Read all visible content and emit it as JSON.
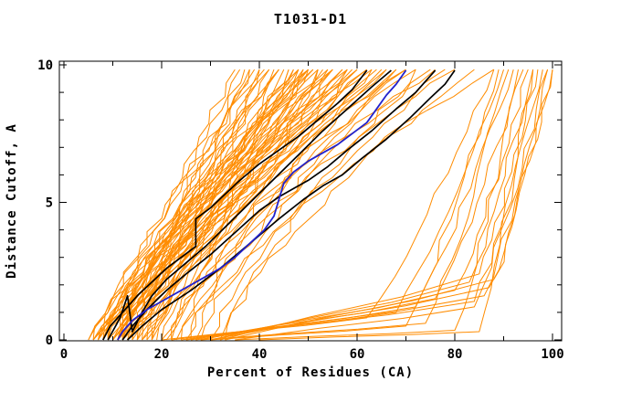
{
  "page": {
    "background": "#FFFFFF"
  },
  "chart_data": {
    "type": "line",
    "title": "T1031-D1",
    "xlabel": "Percent of Residues (CA)",
    "ylabel": "Distance Cutoff, A",
    "xlim": [
      0,
      100
    ],
    "ylim": [
      0,
      10
    ],
    "x_major_ticks": [
      0,
      20,
      40,
      60,
      80,
      100
    ],
    "x_tick_labels": [
      "0",
      "20",
      "40",
      "60",
      "80",
      "100"
    ],
    "x_minor_step": 10,
    "y_major_ticks": [
      0,
      5,
      10
    ],
    "y_tick_labels": [
      "0",
      "5",
      "10"
    ],
    "y_minor_step": 1,
    "grid": false,
    "legend": "none",
    "curve_top_y": 9.83,
    "colors": {
      "orange": "#FF8C00",
      "black": "#000000",
      "blue": "#2222CC",
      "axis": "#000000",
      "background": "#FFFFFF"
    },
    "series": {
      "orange_models_fan": [
        [
          5,
          36,
          1.0
        ],
        [
          5,
          40,
          1.1
        ],
        [
          6,
          38,
          0.9
        ],
        [
          6,
          44,
          1.15
        ],
        [
          6,
          50,
          1.2
        ],
        [
          7,
          37,
          0.85
        ],
        [
          7,
          42,
          1.0
        ],
        [
          7,
          47,
          1.1
        ],
        [
          7,
          55,
          1.25
        ],
        [
          8,
          39,
          0.9
        ],
        [
          8,
          44,
          1.05
        ],
        [
          8,
          50,
          1.15
        ],
        [
          8,
          58,
          1.3
        ],
        [
          9,
          41,
          0.95
        ],
        [
          9,
          46,
          1.05
        ],
        [
          9,
          52,
          1.2
        ],
        [
          9,
          60,
          1.3
        ],
        [
          10,
          38,
          0.85
        ],
        [
          10,
          43,
          1.0
        ],
        [
          10,
          48,
          1.1
        ],
        [
          10,
          54,
          1.2
        ],
        [
          10,
          63,
          1.35
        ],
        [
          11,
          40,
          0.9
        ],
        [
          11,
          45,
          1.0
        ],
        [
          11,
          51,
          1.15
        ],
        [
          11,
          57,
          1.25
        ],
        [
          11,
          66,
          1.35
        ],
        [
          12,
          42,
          0.95
        ],
        [
          12,
          47,
          1.05
        ],
        [
          12,
          53,
          1.15
        ],
        [
          12,
          60,
          1.3
        ],
        [
          12,
          70,
          1.4
        ],
        [
          13,
          44,
          0.95
        ],
        [
          13,
          49,
          1.1
        ],
        [
          13,
          55,
          1.2
        ],
        [
          13,
          64,
          1.3
        ],
        [
          14,
          46,
          1.0
        ],
        [
          14,
          52,
          1.1
        ],
        [
          14,
          58,
          1.25
        ],
        [
          14,
          68,
          1.35
        ],
        [
          15,
          48,
          1.0
        ],
        [
          15,
          54,
          1.15
        ],
        [
          15,
          62,
          1.3
        ],
        [
          16,
          50,
          1.05
        ],
        [
          16,
          57,
          1.2
        ],
        [
          16,
          72,
          1.4
        ],
        [
          17,
          52,
          1.1
        ],
        [
          17,
          60,
          1.25
        ],
        [
          18,
          55,
          1.15
        ],
        [
          18,
          65,
          1.3
        ],
        [
          19,
          58,
          1.2
        ],
        [
          20,
          50,
          1.0
        ],
        [
          20,
          62,
          1.25
        ],
        [
          21,
          55,
          1.1
        ],
        [
          22,
          66,
          1.3
        ],
        [
          23,
          59,
          1.15
        ],
        [
          24,
          70,
          1.35
        ],
        [
          25,
          63,
          1.2
        ],
        [
          26,
          75,
          1.4
        ],
        [
          28,
          68,
          1.25
        ],
        [
          30,
          78,
          1.35
        ],
        [
          32,
          72,
          1.2
        ],
        [
          33,
          84,
          1.4
        ],
        [
          27,
          88,
          1.5
        ],
        [
          22,
          80,
          1.45
        ],
        [
          18,
          76,
          1.4
        ],
        [
          6,
          35,
          0.9
        ],
        [
          9,
          49,
          1.1
        ],
        [
          7,
          51,
          1.2
        ],
        [
          11,
          48,
          1.05
        ]
      ],
      "orange_models_late": [
        [
          20,
          62,
          0.8,
          88
        ],
        [
          22,
          68,
          1.0,
          90
        ],
        [
          24,
          72,
          1.2,
          92
        ],
        [
          26,
          76,
          1.5,
          94
        ],
        [
          28,
          80,
          1.8,
          95
        ],
        [
          30,
          83,
          2.1,
          96
        ],
        [
          32,
          85,
          2.4,
          97
        ],
        [
          25,
          84,
          1.4,
          98
        ],
        [
          27,
          86,
          1.6,
          99
        ],
        [
          30,
          87,
          1.9,
          100
        ],
        [
          33,
          88,
          2.2,
          100
        ],
        [
          35,
          84,
          1.2,
          99
        ],
        [
          30,
          70,
          0.5,
          89
        ],
        [
          35,
          80,
          0.35,
          93
        ],
        [
          40,
          85,
          0.3,
          96
        ],
        [
          28,
          74,
          0.6,
          91
        ]
      ],
      "black_models": [
        [
          [
            8,
            0
          ],
          [
            9.5,
            0.5
          ],
          [
            12,
            1.0
          ],
          [
            15,
            1.6
          ],
          [
            18,
            2.1
          ],
          [
            21,
            2.6
          ],
          [
            24,
            3.0
          ],
          [
            27,
            3.4
          ],
          [
            27,
            4.4
          ],
          [
            30,
            4.8
          ],
          [
            33,
            5.3
          ],
          [
            36,
            5.8
          ],
          [
            40,
            6.4
          ],
          [
            44,
            6.9
          ],
          [
            48,
            7.4
          ],
          [
            52,
            8.0
          ],
          [
            56,
            8.6
          ],
          [
            59,
            9.1
          ],
          [
            62,
            9.8
          ]
        ],
        [
          [
            9,
            0
          ],
          [
            11.5,
            0.8
          ],
          [
            13,
            1.6
          ],
          [
            14,
            0.3
          ],
          [
            16,
            1.0
          ],
          [
            18,
            1.6
          ],
          [
            21,
            2.2
          ],
          [
            25,
            2.8
          ],
          [
            29,
            3.4
          ],
          [
            33,
            4.1
          ],
          [
            37,
            4.8
          ],
          [
            41,
            5.5
          ],
          [
            45,
            6.2
          ],
          [
            49,
            6.9
          ],
          [
            53,
            7.6
          ],
          [
            58,
            8.4
          ],
          [
            63,
            9.2
          ],
          [
            67,
            9.8
          ]
        ],
        [
          [
            12,
            0
          ],
          [
            14,
            0.5
          ],
          [
            17,
            1.1
          ],
          [
            21,
            1.8
          ],
          [
            25,
            2.4
          ],
          [
            30,
            3.1
          ],
          [
            35,
            3.9
          ],
          [
            40,
            4.7
          ],
          [
            44,
            5.2
          ],
          [
            47,
            5.5
          ],
          [
            50,
            5.8
          ],
          [
            54,
            6.3
          ],
          [
            58,
            6.9
          ],
          [
            63,
            7.6
          ],
          [
            68,
            8.4
          ],
          [
            72,
            9.0
          ],
          [
            76,
            9.8
          ]
        ],
        [
          [
            13,
            0
          ],
          [
            16,
            0.5
          ],
          [
            20,
            1.1
          ],
          [
            26,
            1.8
          ],
          [
            32,
            2.6
          ],
          [
            38,
            3.5
          ],
          [
            44,
            4.4
          ],
          [
            49,
            5.1
          ],
          [
            53,
            5.6
          ],
          [
            57,
            6.0
          ],
          [
            61,
            6.6
          ],
          [
            66,
            7.3
          ],
          [
            71,
            8.1
          ],
          [
            75,
            8.8
          ],
          [
            78,
            9.3
          ],
          [
            80,
            9.8
          ]
        ]
      ],
      "blue_model": [
        [
          11,
          0
        ],
        [
          12,
          0.3
        ],
        [
          14,
          0.7
        ],
        [
          17,
          1.1
        ],
        [
          20,
          1.4
        ],
        [
          24,
          1.8
        ],
        [
          28,
          2.2
        ],
        [
          32,
          2.6
        ],
        [
          35,
          3.0
        ],
        [
          38,
          3.5
        ],
        [
          41,
          4.0
        ],
        [
          43,
          4.5
        ],
        [
          44,
          5.1
        ],
        [
          45,
          5.7
        ],
        [
          47,
          6.1
        ],
        [
          50,
          6.5
        ],
        [
          53,
          6.8
        ],
        [
          56,
          7.1
        ],
        [
          59,
          7.5
        ],
        [
          62,
          7.9
        ],
        [
          64,
          8.4
        ],
        [
          66,
          8.9
        ],
        [
          68,
          9.3
        ],
        [
          70,
          9.8
        ]
      ]
    }
  }
}
